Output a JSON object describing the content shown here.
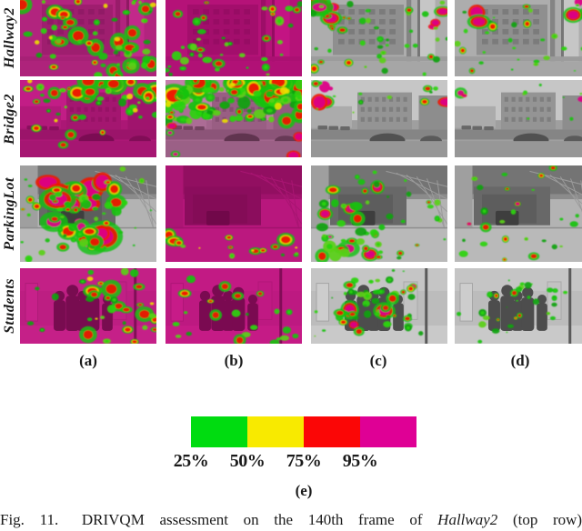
{
  "figure": {
    "col_labels": [
      "(a)",
      "(b)",
      "(c)",
      "(d)"
    ],
    "rows": [
      {
        "label": "Hallway2",
        "scene": "hallway",
        "cells": [
          {
            "wash": 0.7,
            "overlays": [
              [
                "red",
                24,
                "spread",
                1.25
              ],
              [
                "green",
                38,
                "spread",
                1.05
              ],
              [
                "yellow",
                5,
                "spread",
                0.8
              ]
            ]
          },
          {
            "wash": 0.84,
            "overlays": [
              [
                "green",
                16,
                "centerleft",
                1.15
              ],
              [
                "green",
                8,
                "right",
                1.0
              ],
              [
                "red",
                9,
                "spread",
                0.85
              ],
              [
                "green",
                8,
                "bottom",
                0.9
              ]
            ]
          },
          {
            "wash": 0,
            "overlays": [
              [
                "magenta",
                7,
                "topcorners",
                1.7
              ],
              [
                "red",
                7,
                "left",
                0.9
              ],
              [
                "green",
                34,
                "spread",
                0.8
              ],
              [
                "red",
                4,
                "spread",
                0.6
              ]
            ]
          },
          {
            "wash": 0,
            "overlays": [
              [
                "magenta",
                5,
                "topcorners",
                1.35
              ],
              [
                "green",
                24,
                "spread",
                0.75
              ],
              [
                "red",
                5,
                "spread",
                0.65
              ]
            ]
          }
        ]
      },
      {
        "label": "Bridge2",
        "scene": "bridge",
        "cells": [
          {
            "wash": 0.78,
            "overlays": [
              [
                "red",
                15,
                "top",
                1.4
              ],
              [
                "green",
                20,
                "upper",
                1.0
              ],
              [
                "yellow",
                4,
                "upper",
                0.85
              ],
              [
                "red",
                7,
                "spread",
                0.8
              ]
            ]
          },
          {
            "wash": 0.28,
            "overlays": [
              [
                "red",
                30,
                "top",
                1.8
              ],
              [
                "green",
                58,
                "upper",
                1.5
              ],
              [
                "red",
                12,
                "upper",
                1.0
              ],
              [
                "magenta",
                5,
                "edges",
                1.1
              ],
              [
                "yellow",
                6,
                "upper",
                0.9
              ]
            ]
          },
          {
            "wash": 0,
            "overlays": [
              [
                "magenta",
                5,
                "topcorners",
                1.5
              ],
              [
                "red",
                3,
                "topcorners",
                0.8
              ],
              [
                "green",
                9,
                "upper",
                0.65
              ]
            ]
          },
          {
            "wash": 0,
            "overlays": [
              [
                "magenta",
                3,
                "topcorners",
                1.2
              ],
              [
                "green",
                7,
                "upper",
                0.6
              ]
            ]
          }
        ]
      },
      {
        "label": "ParkingLot",
        "scene": "parking",
        "cells": [
          {
            "wash": 0,
            "overlays": [
              [
                "magenta",
                16,
                "center",
                2.2
              ],
              [
                "red",
                14,
                "center",
                1.35
              ],
              [
                "green",
                20,
                "center",
                1.1
              ],
              [
                "green",
                9,
                "left",
                0.9
              ],
              [
                "red",
                5,
                "left",
                0.8
              ],
              [
                "green",
                7,
                "right",
                0.7
              ]
            ]
          },
          {
            "wash": 0.8,
            "overlays": [
              [
                "red",
                9,
                "bottom",
                1.1
              ],
              [
                "green",
                5,
                "bottom",
                0.85
              ],
              [
                "yellow",
                3,
                "bottom",
                0.7
              ]
            ]
          },
          {
            "wash": 0,
            "overlays": [
              [
                "magenta",
                6,
                "centerleft",
                1.3
              ],
              [
                "red",
                8,
                "centerleft",
                1.0
              ],
              [
                "green",
                15,
                "centerleft",
                1.45
              ],
              [
                "green",
                20,
                "spread",
                0.8
              ],
              [
                "red",
                4,
                "spread",
                0.6
              ]
            ]
          },
          {
            "wash": 0,
            "overlays": [
              [
                "green",
                18,
                "spread",
                1.0
              ],
              [
                "red",
                7,
                "spread",
                0.7
              ],
              [
                "magenta",
                2,
                "centerleft",
                0.9
              ]
            ]
          }
        ]
      },
      {
        "label": "Students",
        "scene": "students",
        "cells": [
          {
            "wash": 0.76,
            "overlays": [
              [
                "red",
                16,
                "righthalf",
                1.2
              ],
              [
                "green",
                13,
                "righthalf",
                1.0
              ],
              [
                "green",
                4,
                "left",
                0.8
              ],
              [
                "yellow",
                3,
                "righthalf",
                0.7
              ]
            ]
          },
          {
            "wash": 0.8,
            "overlays": [
              [
                "green",
                6,
                "left",
                1.0
              ],
              [
                "green",
                11,
                "bottomright",
                1.1
              ],
              [
                "red",
                7,
                "spread",
                0.8
              ]
            ]
          },
          {
            "wash": 0,
            "overlays": [
              [
                "magenta",
                5,
                "center",
                1.3
              ],
              [
                "green",
                28,
                "center",
                1.0
              ],
              [
                "red",
                11,
                "center",
                0.8
              ],
              [
                "green",
                9,
                "spread",
                0.6
              ]
            ]
          },
          {
            "wash": 0,
            "overlays": [
              [
                "green",
                20,
                "center",
                0.9
              ],
              [
                "red",
                5,
                "center",
                0.6
              ],
              [
                "green",
                7,
                "spread",
                0.5
              ]
            ]
          }
        ]
      }
    ]
  },
  "legend": {
    "segments": [
      {
        "tick": "25%",
        "color": "#00dc10",
        "name": "green"
      },
      {
        "tick": "50%",
        "color": "#f8ea00",
        "name": "yellow"
      },
      {
        "tick": "75%",
        "color": "#fb0606",
        "name": "red"
      },
      {
        "tick": "95%",
        "color": "#df0095",
        "name": "magenta"
      }
    ],
    "label": "(e)"
  },
  "caption": {
    "fig": "Fig. 11.",
    "text": "DRIVQM assessment on the 140th frame of",
    "italic": "Hallway2",
    "tail": "(top row)"
  },
  "palette": {
    "greens": [
      "#14c20c",
      "#2ad40f",
      "#0ea309",
      "#5ad013"
    ],
    "yellow": "#ecde06",
    "red": "#ee1406",
    "magenta": "#dc0087",
    "wash": "#e2008f"
  }
}
